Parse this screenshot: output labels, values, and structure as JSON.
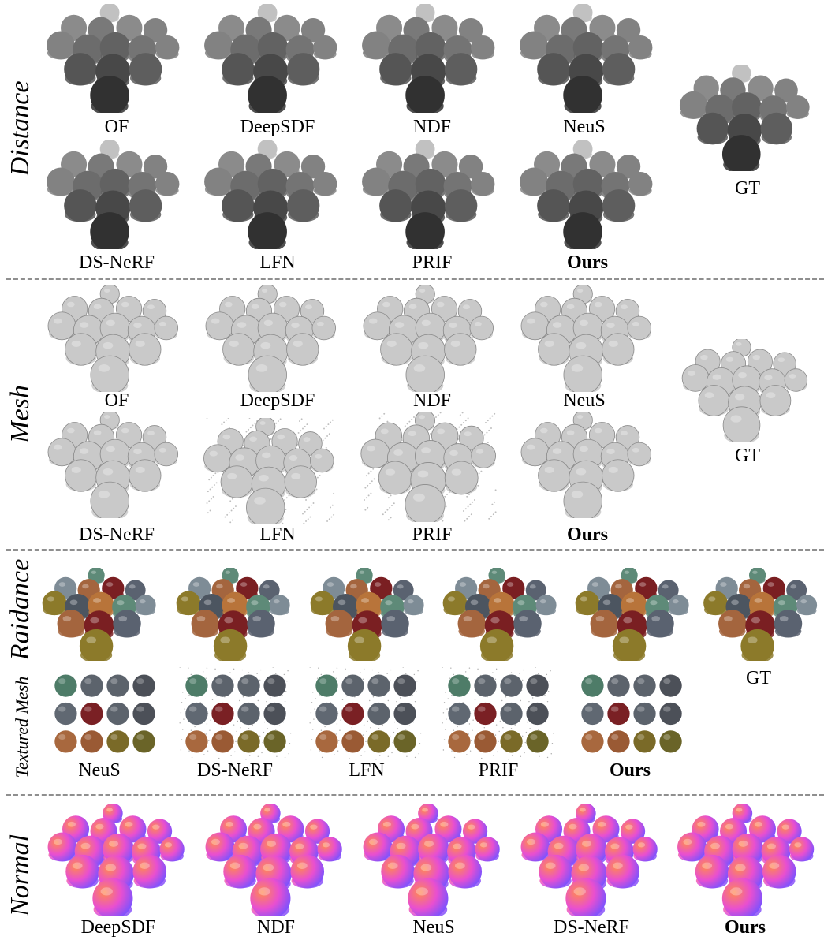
{
  "sections": {
    "distance": {
      "label": "Distance",
      "row1": [
        "OF",
        "DeepSDF",
        "NDF",
        "NeuS"
      ],
      "row2": [
        "DS-NeRF",
        "LFN",
        "PRIF",
        "Ours"
      ],
      "gt": "GT"
    },
    "mesh": {
      "label": "Mesh",
      "row1": [
        "OF",
        "DeepSDF",
        "NDF",
        "NeuS"
      ],
      "row2": [
        "DS-NeRF",
        "LFN",
        "PRIF",
        "Ours"
      ],
      "gt": "GT"
    },
    "radiance": {
      "label": "Raidance",
      "gt": "GT"
    },
    "textured": {
      "label": "Textured Mesh",
      "row": [
        "NeuS",
        "DS-NeRF",
        "LFN",
        "PRIF",
        "Ours"
      ]
    },
    "normal": {
      "label": "Normal",
      "row": [
        "DeepSDF",
        "NDF",
        "NeuS",
        "DS-NeRF",
        "Ours"
      ]
    }
  },
  "colors": {
    "separator": "#8f8f8f",
    "normal_gradient": [
      "#ff8a4f",
      "#e94fd0",
      "#7a52ff"
    ]
  }
}
